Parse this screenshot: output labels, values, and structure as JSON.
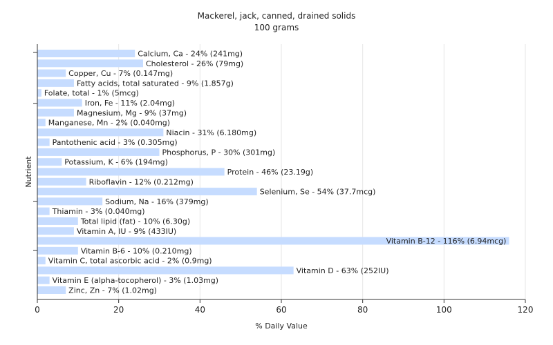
{
  "chart_data": {
    "type": "bar",
    "orientation": "horizontal",
    "title": "Mackerel, jack, canned, drained solids",
    "subtitle": "100 grams",
    "xlabel": "% Daily Value",
    "ylabel": "Nutrient",
    "xlim": [
      0,
      120
    ],
    "xticks": [
      0,
      20,
      40,
      60,
      80,
      100,
      120
    ],
    "grid": true,
    "legend": "none",
    "bar_color": "#c6dcff",
    "categories": [
      "Calcium, Ca",
      "Cholesterol",
      "Copper, Cu",
      "Fatty acids, total saturated",
      "Folate, total",
      "Iron, Fe",
      "Magnesium, Mg",
      "Manganese, Mn",
      "Niacin",
      "Pantothenic acid",
      "Phosphorus, P",
      "Potassium, K",
      "Protein",
      "Riboflavin",
      "Selenium, Se",
      "Sodium, Na",
      "Thiamin",
      "Total lipid (fat)",
      "Vitamin A, IU",
      "Vitamin B-12",
      "Vitamin B-6",
      "Vitamin C, total ascorbic acid",
      "Vitamin D",
      "Vitamin E (alpha-tocopherol)",
      "Zinc, Zn"
    ],
    "values": [
      24,
      26,
      7,
      9,
      1,
      11,
      9,
      2,
      31,
      3,
      30,
      6,
      46,
      12,
      54,
      16,
      3,
      10,
      9,
      116,
      10,
      2,
      63,
      3,
      7
    ],
    "labels": [
      "Calcium, Ca - 24% (241mg)",
      "Cholesterol - 26% (79mg)",
      "Copper, Cu - 7% (0.147mg)",
      "Fatty acids, total saturated - 9% (1.857g)",
      "Folate, total - 1% (5mcg)",
      "Iron, Fe - 11% (2.04mg)",
      "Magnesium, Mg - 9% (37mg)",
      "Manganese, Mn - 2% (0.040mg)",
      "Niacin - 31% (6.180mg)",
      "Pantothenic acid - 3% (0.305mg)",
      "Phosphorus, P - 30% (301mg)",
      "Potassium, K - 6% (194mg)",
      "Protein - 46% (23.19g)",
      "Riboflavin - 12% (0.212mg)",
      "Selenium, Se - 54% (37.7mcg)",
      "Sodium, Na - 16% (379mg)",
      "Thiamin - 3% (0.040mg)",
      "Total lipid (fat) - 10% (6.30g)",
      "Vitamin A, IU - 9% (433IU)",
      "Vitamin B-12 - 116% (6.94mcg)",
      "Vitamin B-6 - 10% (0.210mg)",
      "Vitamin C, total ascorbic acid - 2% (0.9mg)",
      "Vitamin D - 63% (252IU)",
      "Vitamin E (alpha-tocopherol) - 3% (1.03mg)",
      "Zinc, Zn - 7% (1.02mg)"
    ]
  }
}
